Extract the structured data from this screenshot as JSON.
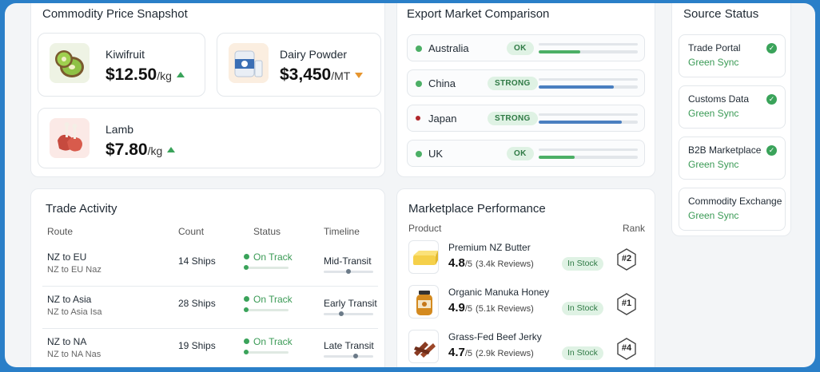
{
  "commodity": {
    "title": "Commodity Price Snapshot",
    "items": [
      {
        "name": "Kiwifruit",
        "price": "$12.50",
        "unit": "/kg",
        "trend": "up"
      },
      {
        "name": "Dairy Powder",
        "price": "$3,450",
        "unit": "/MT",
        "trend": "down"
      },
      {
        "name": "Lamb",
        "price": "$7.80",
        "unit": "/kg",
        "trend": "up"
      }
    ]
  },
  "export": {
    "title": "Export Market Comparison",
    "rows": [
      {
        "country": "Australia",
        "badge": "OK",
        "dot": "#4caf66",
        "bar_color": "#4caf66",
        "share": 0.42
      },
      {
        "country": "China",
        "badge": "STRONG",
        "dot": "#4caf66",
        "bar_color": "#4a7fc0",
        "share": 0.76
      },
      {
        "country": "Japan",
        "badge": "STRONG",
        "dot": "#b0262b",
        "bar_color": "#4a7fc0",
        "share": 0.84
      },
      {
        "country": "UK",
        "badge": "OK",
        "dot": "#4caf66",
        "bar_color": "#4caf66",
        "share": 0.36
      }
    ]
  },
  "source": {
    "title": "Source Status",
    "items": [
      {
        "name": "Trade Portal",
        "status": "Green Sync",
        "checked": true
      },
      {
        "name": "Customs Data",
        "status": "Green Sync",
        "checked": true
      },
      {
        "name": "B2B Marketplace",
        "status": "Green Sync",
        "checked": true
      },
      {
        "name": "Commodity Exchange",
        "status": "Green Sync",
        "checked": false
      }
    ]
  },
  "trade": {
    "title": "Trade Activity",
    "headers": {
      "route": "Route",
      "count": "Count",
      "status": "Status",
      "timeline": "Timeline"
    },
    "rows": [
      {
        "route": "NZ to EU",
        "sub": "NZ to EU Naz",
        "count": "14 Ships",
        "status": "On Track",
        "timeline": "Mid-Transit",
        "progress": 0.5
      },
      {
        "route": "NZ to Asia",
        "sub": "NZ to Asia Isa",
        "count": "28 Ships",
        "status": "On Track",
        "timeline": "Early Transit",
        "progress": 0.35
      },
      {
        "route": "NZ to NA",
        "sub": "NZ to NA Nas",
        "count": "19 Ships",
        "status": "On Track",
        "timeline": "Late Transit",
        "progress": 0.65
      }
    ]
  },
  "market": {
    "title": "Marketplace Performance",
    "headers": {
      "product": "Product",
      "rank": "Rank"
    },
    "rows": [
      {
        "product": "Premium NZ Butter",
        "rating": "4.8",
        "out_of": "/5",
        "reviews": "(3.4k Reviews)",
        "stock": "In Stock",
        "rank": "#2",
        "icon": "butter-icon"
      },
      {
        "product": "Organic Manuka Honey",
        "rating": "4.9",
        "out_of": "/5",
        "reviews": "(5.1k Reviews)",
        "stock": "In Stock",
        "rank": "#1",
        "icon": "honey-jar-icon"
      },
      {
        "product": "Grass-Fed Beef Jerky",
        "rating": "4.7",
        "out_of": "/5",
        "reviews": "(2.9k Reviews)",
        "stock": "In Stock",
        "rank": "#4",
        "icon": "beef-jerky-icon"
      }
    ]
  }
}
